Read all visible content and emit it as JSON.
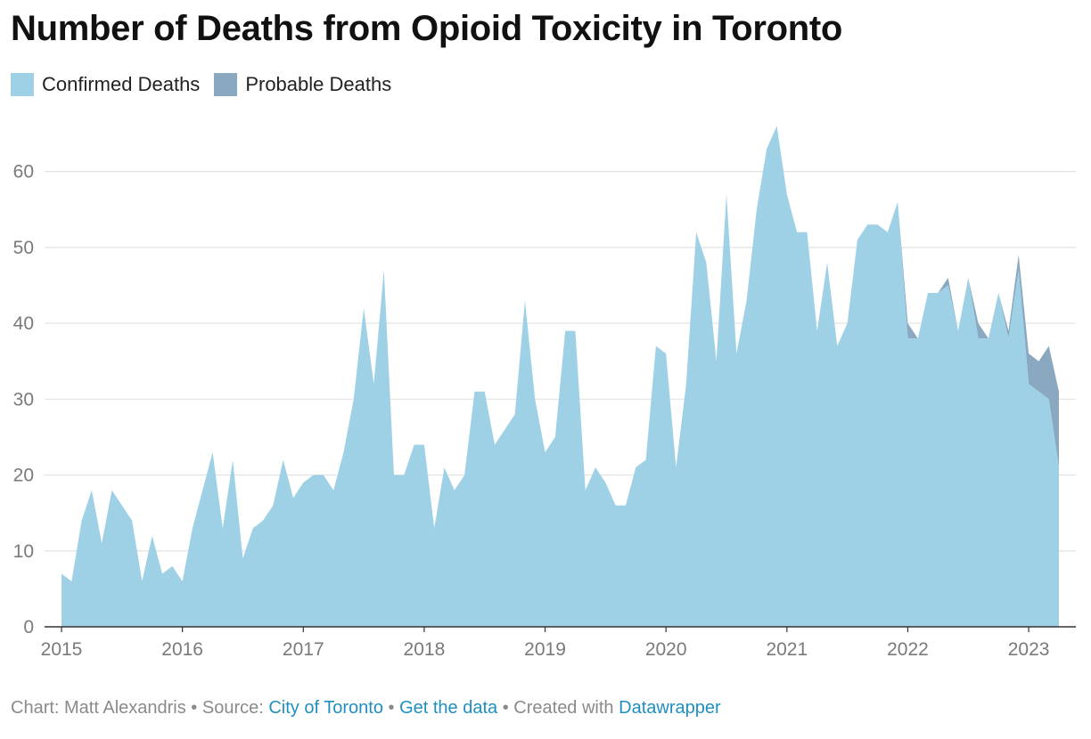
{
  "title": "Number of Deaths from Opioid Toxicity in Toronto",
  "legend": [
    {
      "label": "Confirmed Deaths",
      "color": "#9fd1e6"
    },
    {
      "label": "Probable Deaths",
      "color": "#8aa8bf"
    }
  ],
  "footer": {
    "chart_by": "Chart: Matt Alexandris",
    "sep1": " • ",
    "source_prefix": "Source: ",
    "source_link": "City of Toronto",
    "sep2": " • ",
    "get_data": "Get the data",
    "sep3": " • ",
    "created_prefix": "Created with ",
    "created_link": "Datawrapper"
  },
  "chart_data": {
    "type": "area",
    "stacked": true,
    "title": "Number of Deaths from Opioid Toxicity in Toronto",
    "xlabel": "",
    "ylabel": "",
    "x_start": "2015-01",
    "x_frequency": "monthly",
    "xlim": [
      "2015-01",
      "2023-04"
    ],
    "ylim": [
      0,
      65
    ],
    "yticks": [
      0,
      10,
      20,
      30,
      40,
      50,
      60
    ],
    "xticks": [
      "2015",
      "2016",
      "2017",
      "2018",
      "2019",
      "2020",
      "2021",
      "2022",
      "2023"
    ],
    "grid": true,
    "legend_position": "top-left",
    "series": [
      {
        "name": "Confirmed Deaths",
        "color": "#9fd1e6",
        "values": [
          7,
          6,
          14,
          18,
          11,
          18,
          16,
          14,
          6,
          12,
          7,
          8,
          6,
          13,
          18,
          23,
          13,
          22,
          9,
          13,
          14,
          16,
          22,
          17,
          19,
          20,
          20,
          18,
          23,
          30,
          42,
          32,
          47,
          20,
          20,
          24,
          24,
          13,
          21,
          18,
          20,
          31,
          31,
          24,
          26,
          28,
          43,
          30,
          23,
          25,
          39,
          39,
          18,
          21,
          19,
          16,
          16,
          21,
          22,
          37,
          36,
          21,
          32,
          52,
          48,
          35,
          57,
          36,
          43,
          55,
          63,
          66,
          57,
          52,
          52,
          39,
          48,
          37,
          40,
          51,
          53,
          53,
          52,
          56,
          38,
          38,
          44,
          44,
          45,
          39,
          46,
          38,
          38,
          44,
          38,
          47,
          32,
          31,
          30,
          21
        ]
      },
      {
        "name": "Probable Deaths",
        "color": "#8aa8bf",
        "values": [
          0,
          0,
          0,
          0,
          0,
          0,
          0,
          0,
          0,
          0,
          0,
          0,
          0,
          0,
          0,
          0,
          0,
          0,
          0,
          0,
          0,
          0,
          0,
          0,
          0,
          0,
          0,
          0,
          0,
          0,
          0,
          0,
          0,
          0,
          0,
          0,
          0,
          0,
          0,
          0,
          0,
          0,
          0,
          0,
          0,
          0,
          0,
          0,
          0,
          0,
          0,
          0,
          0,
          0,
          0,
          0,
          0,
          0,
          0,
          0,
          0,
          0,
          0,
          0,
          0,
          0,
          0,
          0,
          0,
          0,
          0,
          0,
          0,
          0,
          0,
          0,
          0,
          0,
          0,
          0,
          0,
          0,
          0,
          0,
          2,
          0,
          0,
          0,
          1,
          0,
          0,
          2,
          0,
          0,
          1,
          2,
          4,
          4,
          7,
          10
        ]
      }
    ]
  }
}
